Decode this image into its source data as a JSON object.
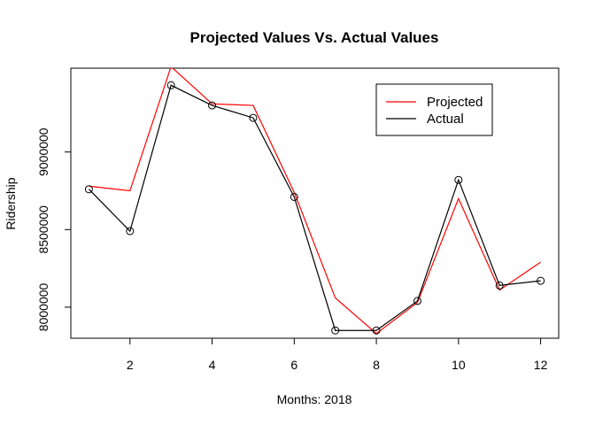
{
  "chart_data": {
    "type": "line",
    "title": "Projected Values Vs. Actual Values",
    "xlabel": "Months: 2018",
    "ylabel": "Ridership",
    "xlim": [
      0.56,
      12.44
    ],
    "ylim": [
      7800000,
      9540000
    ],
    "x_ticks": [
      2,
      4,
      6,
      8,
      10,
      12
    ],
    "y_ticks": [
      8000000,
      8500000,
      9000000
    ],
    "grid": false,
    "legend_position": "top-right",
    "x": [
      1,
      2,
      3,
      4,
      5,
      6,
      7,
      8,
      9,
      10,
      11,
      12
    ],
    "series": [
      {
        "name": "Projected",
        "color": "#ff0000",
        "markers": false,
        "values": [
          8780000,
          8750000,
          9550000,
          9310000,
          9300000,
          8740000,
          8060000,
          7830000,
          8030000,
          8700000,
          8110000,
          8290000
        ]
      },
      {
        "name": "Actual",
        "color": "#000000",
        "markers": true,
        "values": [
          8760000,
          8490000,
          9430000,
          9300000,
          9220000,
          8710000,
          7850000,
          7850000,
          8040000,
          8820000,
          8140000,
          8170000
        ]
      }
    ]
  }
}
